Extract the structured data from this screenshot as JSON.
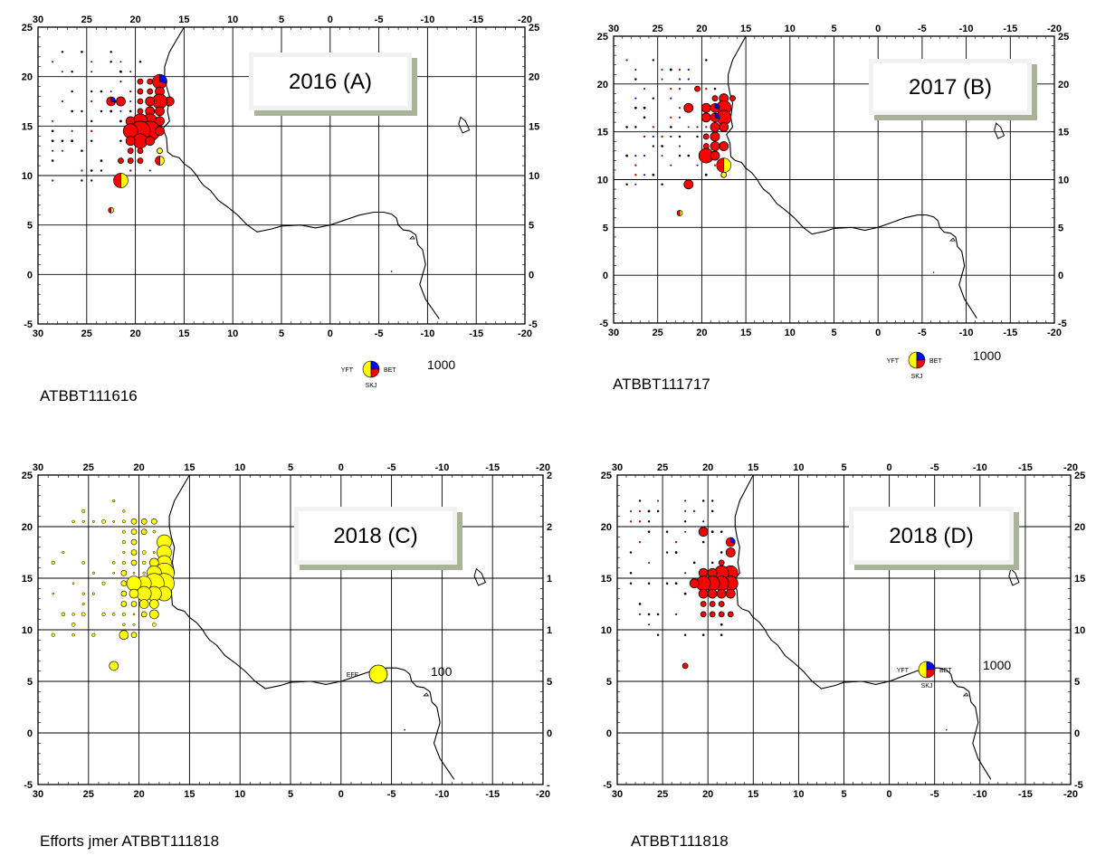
{
  "axes": {
    "x_ticks": [
      "30",
      "25",
      "20",
      "15",
      "10",
      "5",
      "0",
      "-5",
      "-10",
      "-15",
      "-20"
    ],
    "y_ticks": [
      "25",
      "20",
      "15",
      "10",
      "5",
      "0",
      "-5"
    ]
  },
  "colors": {
    "yft": "#ffff00",
    "bet": "#0000ff",
    "skj": "#ff0000",
    "effort": "#ffff00",
    "coast": "#000000",
    "grid": "#000000",
    "label_box_shadow": "#aab39a"
  },
  "panels": [
    {
      "title": "2016 (A)",
      "dataset": "ATBBT111616",
      "legend": {
        "type": "species_pie",
        "codes": [
          "YFT",
          "BET",
          "SKJ"
        ],
        "value": "1000"
      },
      "right_ticks": [
        "25",
        "20",
        "15",
        "10",
        "5",
        "0",
        "-5"
      ]
    },
    {
      "title": "2017 (B)",
      "dataset": "ATBBT111717",
      "legend": {
        "type": "species_pie",
        "codes": [
          "YFT",
          "BET",
          "SKJ"
        ],
        "value": "1000"
      },
      "right_ticks": [
        "25",
        "20",
        "15",
        "10",
        "5",
        "0",
        "-5"
      ]
    },
    {
      "title": "2018 (C)",
      "dataset": "Efforts jmer ATBBT111818",
      "legend": {
        "type": "effort",
        "codes": [
          "EFF"
        ],
        "value": "100"
      },
      "right_ticks": [
        "2",
        "2",
        "1",
        "1",
        "5",
        "0",
        "-"
      ]
    },
    {
      "title": "2018 (D)",
      "dataset": "ATBBT111818",
      "legend": {
        "type": "species_pie",
        "codes": [
          "YFT",
          "BET",
          "SKJ"
        ],
        "value": "1000"
      },
      "right_ticks": [
        "25",
        "20",
        "15",
        "10",
        "5",
        "0",
        "-5"
      ]
    }
  ],
  "catch_by_cell": {
    "2016": [
      {
        "lon": 17.5,
        "lat": 19.5,
        "size": "L",
        "mix": "SKJ-BET"
      },
      {
        "lon": 18.5,
        "lat": 19.5,
        "size": "S",
        "mix": "SKJ"
      },
      {
        "lon": 19.5,
        "lat": 19.5,
        "size": "S",
        "mix": "SKJ"
      },
      {
        "lon": 17.5,
        "lat": 18.5,
        "size": "M",
        "mix": "SKJ"
      },
      {
        "lon": 18.5,
        "lat": 18.5,
        "size": "S",
        "mix": "SKJ"
      },
      {
        "lon": 19.5,
        "lat": 18.5,
        "size": "S",
        "mix": "SKJ"
      },
      {
        "lon": 16.5,
        "lat": 17.5,
        "size": "M",
        "mix": "SKJ"
      },
      {
        "lon": 17.5,
        "lat": 17.5,
        "size": "L",
        "mix": "SKJ"
      },
      {
        "lon": 18.5,
        "lat": 17.5,
        "size": "M",
        "mix": "SKJ"
      },
      {
        "lon": 19.5,
        "lat": 17.5,
        "size": "S",
        "mix": "SKJ"
      },
      {
        "lon": 22.5,
        "lat": 17.5,
        "size": "M",
        "mix": "SKJ-BET"
      },
      {
        "lon": 21.5,
        "lat": 17.5,
        "size": "M",
        "mix": "SKJ"
      },
      {
        "lon": 17.5,
        "lat": 16.5,
        "size": "M",
        "mix": "SKJ"
      },
      {
        "lon": 18.5,
        "lat": 16.5,
        "size": "M",
        "mix": "SKJ"
      },
      {
        "lon": 19.5,
        "lat": 16.5,
        "size": "S",
        "mix": "SKJ"
      },
      {
        "lon": 18.5,
        "lat": 15.5,
        "size": "L",
        "mix": "SKJ"
      },
      {
        "lon": 19.5,
        "lat": 15.5,
        "size": "L",
        "mix": "SKJ"
      },
      {
        "lon": 20.5,
        "lat": 15.5,
        "size": "M",
        "mix": "SKJ"
      },
      {
        "lon": 17.5,
        "lat": 15.5,
        "size": "M",
        "mix": "SKJ"
      },
      {
        "lon": 18.5,
        "lat": 14.5,
        "size": "XL",
        "mix": "SKJ"
      },
      {
        "lon": 19.5,
        "lat": 14.5,
        "size": "XL",
        "mix": "SKJ"
      },
      {
        "lon": 20.5,
        "lat": 14.5,
        "size": "L",
        "mix": "SKJ"
      },
      {
        "lon": 17.5,
        "lat": 14.5,
        "size": "M",
        "mix": "SKJ"
      },
      {
        "lon": 19.5,
        "lat": 13.5,
        "size": "L",
        "mix": "SKJ"
      },
      {
        "lon": 18.5,
        "lat": 13.5,
        "size": "M",
        "mix": "SKJ"
      },
      {
        "lon": 20.5,
        "lat": 13.5,
        "size": "M",
        "mix": "SKJ"
      },
      {
        "lon": 20.5,
        "lat": 12.5,
        "size": "S",
        "mix": "SKJ"
      },
      {
        "lon": 19.5,
        "lat": 12.5,
        "size": "S",
        "mix": "SKJ"
      },
      {
        "lon": 17.5,
        "lat": 12.5,
        "size": "S",
        "mix": "YFT"
      },
      {
        "lon": 17.5,
        "lat": 11.5,
        "size": "M",
        "mix": "YFT-SKJ"
      },
      {
        "lon": 19.5,
        "lat": 11.5,
        "size": "S",
        "mix": "SKJ"
      },
      {
        "lon": 20.5,
        "lat": 11.5,
        "size": "S",
        "mix": "SKJ"
      },
      {
        "lon": 21.5,
        "lat": 11.5,
        "size": "S",
        "mix": "SKJ"
      },
      {
        "lon": 21.5,
        "lat": 9.5,
        "size": "L",
        "mix": "YFT-SKJ"
      },
      {
        "lon": 22.5,
        "lat": 6.5,
        "size": "S",
        "mix": "YFT-SKJ"
      }
    ],
    "2017": [
      {
        "lon": 17.5,
        "lat": 18.5,
        "size": "M",
        "mix": "SKJ"
      },
      {
        "lon": 18.5,
        "lat": 18.5,
        "size": "S",
        "mix": "SKJ"
      },
      {
        "lon": 16.5,
        "lat": 18.5,
        "size": "S",
        "mix": "SKJ"
      },
      {
        "lon": 20.5,
        "lat": 19.5,
        "size": "S",
        "mix": "SKJ"
      },
      {
        "lon": 17.5,
        "lat": 17.5,
        "size": "L",
        "mix": "SKJ"
      },
      {
        "lon": 18.5,
        "lat": 17.5,
        "size": "M",
        "mix": "SKJ-BET"
      },
      {
        "lon": 19.5,
        "lat": 17.5,
        "size": "M",
        "mix": "SKJ"
      },
      {
        "lon": 21.5,
        "lat": 17.5,
        "size": "M",
        "mix": "SKJ"
      },
      {
        "lon": 17.5,
        "lat": 16.5,
        "size": "L",
        "mix": "SKJ"
      },
      {
        "lon": 18.5,
        "lat": 16.5,
        "size": "M",
        "mix": "SKJ-BET"
      },
      {
        "lon": 19.5,
        "lat": 16.5,
        "size": "M",
        "mix": "SKJ"
      },
      {
        "lon": 17.5,
        "lat": 15.5,
        "size": "M",
        "mix": "SKJ"
      },
      {
        "lon": 18.5,
        "lat": 15.5,
        "size": "M",
        "mix": "SKJ"
      },
      {
        "lon": 18.5,
        "lat": 14.5,
        "size": "M",
        "mix": "SKJ"
      },
      {
        "lon": 19.5,
        "lat": 14.5,
        "size": "S",
        "mix": "SKJ"
      },
      {
        "lon": 17.5,
        "lat": 13.5,
        "size": "M",
        "mix": "SKJ"
      },
      {
        "lon": 18.5,
        "lat": 13.5,
        "size": "M",
        "mix": "SKJ"
      },
      {
        "lon": 19.5,
        "lat": 13.5,
        "size": "S",
        "mix": "SKJ"
      },
      {
        "lon": 19.5,
        "lat": 12.5,
        "size": "L",
        "mix": "SKJ"
      },
      {
        "lon": 18.5,
        "lat": 12.5,
        "size": "M",
        "mix": "SKJ"
      },
      {
        "lon": 17.5,
        "lat": 11.5,
        "size": "L",
        "mix": "YFT-SKJ"
      },
      {
        "lon": 17.5,
        "lat": 10.5,
        "size": "S",
        "mix": "YFT"
      },
      {
        "lon": 21.5,
        "lat": 9.5,
        "size": "M",
        "mix": "SKJ"
      },
      {
        "lon": 22.5,
        "lat": 6.5,
        "size": "S",
        "mix": "YFT-SKJ"
      }
    ],
    "2018D": [
      {
        "lon": 17.5,
        "lat": 18.5,
        "size": "M",
        "mix": "SKJ-BET"
      },
      {
        "lon": 17.5,
        "lat": 17.5,
        "size": "M",
        "mix": "SKJ"
      },
      {
        "lon": 20.5,
        "lat": 19.5,
        "size": "M",
        "mix": "SKJ"
      },
      {
        "lon": 18.5,
        "lat": 16.5,
        "size": "S",
        "mix": "SKJ"
      },
      {
        "lon": 17.5,
        "lat": 15.5,
        "size": "L",
        "mix": "SKJ"
      },
      {
        "lon": 18.5,
        "lat": 15.5,
        "size": "L",
        "mix": "SKJ"
      },
      {
        "lon": 19.5,
        "lat": 15.5,
        "size": "M",
        "mix": "SKJ"
      },
      {
        "lon": 20.5,
        "lat": 15.5,
        "size": "M",
        "mix": "SKJ"
      },
      {
        "lon": 17.5,
        "lat": 14.5,
        "size": "L",
        "mix": "SKJ"
      },
      {
        "lon": 18.5,
        "lat": 14.5,
        "size": "L",
        "mix": "SKJ"
      },
      {
        "lon": 19.5,
        "lat": 14.5,
        "size": "L",
        "mix": "SKJ"
      },
      {
        "lon": 20.5,
        "lat": 14.5,
        "size": "L",
        "mix": "SKJ"
      },
      {
        "lon": 21.5,
        "lat": 14.5,
        "size": "M",
        "mix": "SKJ"
      },
      {
        "lon": 17.5,
        "lat": 13.5,
        "size": "M",
        "mix": "SKJ"
      },
      {
        "lon": 18.5,
        "lat": 13.5,
        "size": "M",
        "mix": "SKJ"
      },
      {
        "lon": 19.5,
        "lat": 13.5,
        "size": "M",
        "mix": "SKJ"
      },
      {
        "lon": 20.5,
        "lat": 13.5,
        "size": "M",
        "mix": "SKJ"
      },
      {
        "lon": 18.5,
        "lat": 12.5,
        "size": "S",
        "mix": "SKJ"
      },
      {
        "lon": 19.5,
        "lat": 12.5,
        "size": "S",
        "mix": "SKJ"
      },
      {
        "lon": 20.5,
        "lat": 12.5,
        "size": "S",
        "mix": "SKJ"
      },
      {
        "lon": 17.5,
        "lat": 11.5,
        "size": "S",
        "mix": "SKJ"
      },
      {
        "lon": 18.5,
        "lat": 11.5,
        "size": "S",
        "mix": "SKJ"
      },
      {
        "lon": 19.5,
        "lat": 11.5,
        "size": "S",
        "mix": "SKJ"
      },
      {
        "lon": 20.5,
        "lat": 11.5,
        "size": "S",
        "mix": "SKJ"
      },
      {
        "lon": 22.5,
        "lat": 6.5,
        "size": "S",
        "mix": "SKJ"
      }
    ]
  },
  "effort_by_cell": [
    {
      "lon": 17.5,
      "lat": 18.5,
      "size": "L"
    },
    {
      "lon": 17.5,
      "lat": 17.5,
      "size": "L"
    },
    {
      "lon": 17.5,
      "lat": 16.5,
      "size": "L"
    },
    {
      "lon": 18.5,
      "lat": 16.5,
      "size": "M"
    },
    {
      "lon": 17.5,
      "lat": 15.5,
      "size": "XL"
    },
    {
      "lon": 18.5,
      "lat": 15.5,
      "size": "L"
    },
    {
      "lon": 17.5,
      "lat": 14.5,
      "size": "XL"
    },
    {
      "lon": 18.5,
      "lat": 14.5,
      "size": "XL"
    },
    {
      "lon": 19.5,
      "lat": 14.5,
      "size": "L"
    },
    {
      "lon": 20.5,
      "lat": 14.5,
      "size": "L"
    },
    {
      "lon": 17.5,
      "lat": 13.5,
      "size": "L"
    },
    {
      "lon": 18.5,
      "lat": 13.5,
      "size": "L"
    },
    {
      "lon": 19.5,
      "lat": 13.5,
      "size": "L"
    },
    {
      "lon": 20.5,
      "lat": 13.5,
      "size": "M"
    },
    {
      "lon": 18.5,
      "lat": 12.5,
      "size": "M"
    },
    {
      "lon": 19.5,
      "lat": 12.5,
      "size": "M"
    },
    {
      "lon": 20.5,
      "lat": 12.5,
      "size": "S"
    },
    {
      "lon": 18.5,
      "lat": 11.5,
      "size": "M"
    },
    {
      "lon": 19.5,
      "lat": 11.5,
      "size": "S"
    },
    {
      "lon": 18.5,
      "lat": 20.5,
      "size": "S"
    },
    {
      "lon": 19.5,
      "lat": 20.5,
      "size": "S"
    },
    {
      "lon": 20.5,
      "lat": 20.5,
      "size": "S"
    },
    {
      "lon": 19.5,
      "lat": 19.5,
      "size": "S"
    },
    {
      "lon": 20.5,
      "lat": 19.5,
      "size": "S"
    },
    {
      "lon": 20.5,
      "lat": 18.5,
      "size": "S"
    },
    {
      "lon": 20.5,
      "lat": 17.5,
      "size": "S"
    },
    {
      "lon": 20.5,
      "lat": 16.5,
      "size": "S"
    },
    {
      "lon": 21.5,
      "lat": 15.5,
      "size": "S"
    },
    {
      "lon": 21.5,
      "lat": 14.5,
      "size": "S"
    },
    {
      "lon": 21.5,
      "lat": 13.5,
      "size": "S"
    },
    {
      "lon": 21.5,
      "lat": 12.5,
      "size": "S"
    },
    {
      "lon": 21.5,
      "lat": 9.5,
      "size": "M"
    },
    {
      "lon": 20.5,
      "lat": 9.5,
      "size": "S"
    },
    {
      "lon": 22.5,
      "lat": 6.5,
      "size": "M"
    }
  ]
}
